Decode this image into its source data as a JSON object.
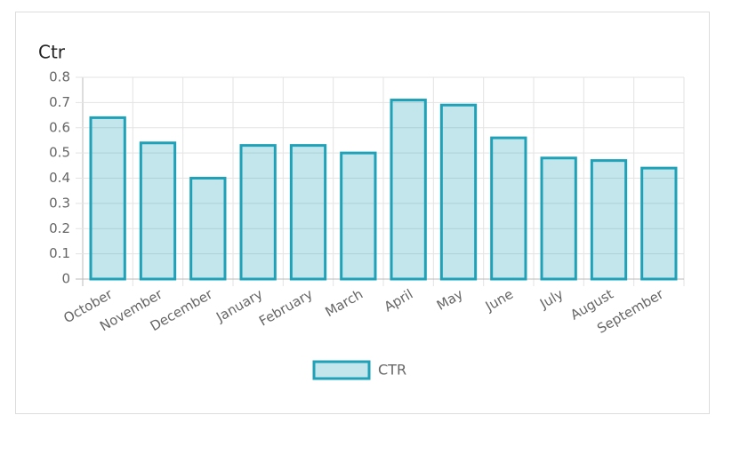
{
  "chart_data": {
    "type": "bar",
    "title": "Ctr",
    "categories": [
      "October",
      "November",
      "December",
      "January",
      "February",
      "March",
      "April",
      "May",
      "June",
      "July",
      "August",
      "September"
    ],
    "series": [
      {
        "name": "CTR",
        "color": "#1fa2b8",
        "values": [
          0.64,
          0.54,
          0.4,
          0.53,
          0.53,
          0.5,
          0.71,
          0.69,
          0.56,
          0.48,
          0.47,
          0.44
        ]
      }
    ],
    "ylim": [
      0,
      0.8
    ],
    "yticks": [
      0,
      0.1,
      0.2,
      0.3,
      0.4,
      0.5,
      0.6,
      0.7,
      0.8
    ],
    "grid": true,
    "legend": "bottom"
  }
}
